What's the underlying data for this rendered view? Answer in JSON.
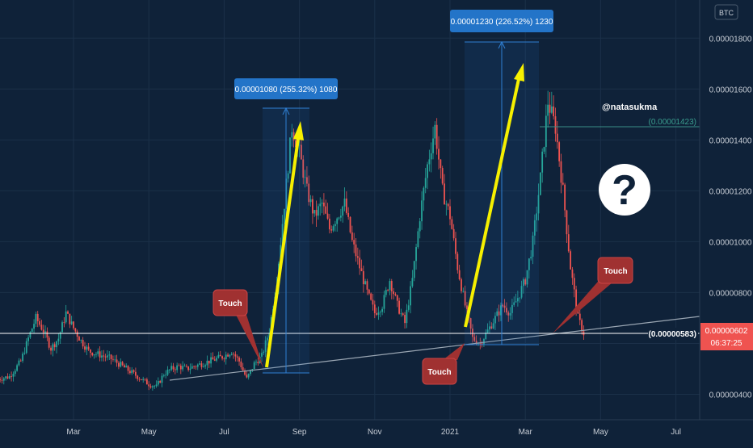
{
  "chart_data": {
    "type": "candlestick",
    "currency": "BTC",
    "watermark": "@natasukma",
    "grid": true,
    "xaxis": {
      "labels": [
        "Mar",
        "May",
        "Jul",
        "Sep",
        "Nov",
        "2021",
        "Mar",
        "May",
        "Jul"
      ]
    },
    "yaxis": {
      "range": [
        3e-06,
        1.95e-05
      ],
      "ticks": [
        "0.00000400",
        "0.00000600",
        "0.00000800",
        "0.00001000",
        "0.00001200",
        "0.00001400",
        "0.00001600",
        "0.00001800"
      ]
    },
    "current_price": "0.00000602",
    "countdown": "06:37:25",
    "horizontal_line_label": "(0.00000583)",
    "level_label": "(0.00001423)",
    "measurements": [
      {
        "label": "0.00001080 (255.32%) 1080",
        "from": 4.25e-06,
        "to": 1.505e-05
      },
      {
        "label": "0.00001230 (226.52%) 1230",
        "from": 5.45e-06,
        "to": 1.775e-05
      }
    ],
    "callouts": [
      "Touch",
      "Touch",
      "Touch"
    ],
    "question_mark": "?",
    "price_series": [
      [
        0.0,
        4.6e-06
      ],
      [
        0.3,
        4.7e-06
      ],
      [
        0.6,
        5.3e-06
      ],
      [
        0.8,
        6.2e-06
      ],
      [
        1.0,
        7e-06
      ],
      [
        1.2,
        6.5e-06
      ],
      [
        1.4,
        5.8e-06
      ],
      [
        1.6,
        6.2e-06
      ],
      [
        1.8,
        7.2e-06
      ],
      [
        2.0,
        6.6e-06
      ],
      [
        2.2,
        6.1e-06
      ],
      [
        2.4,
        5.7e-06
      ],
      [
        2.6,
        5.6e-06
      ],
      [
        2.8,
        5.5e-06
      ],
      [
        3.0,
        5.4e-06
      ],
      [
        3.2,
        5.2e-06
      ],
      [
        3.4,
        5e-06
      ],
      [
        3.6,
        4.8e-06
      ],
      [
        3.8,
        4.6e-06
      ],
      [
        4.0,
        4.4e-06
      ],
      [
        4.2,
        4.3e-06
      ],
      [
        4.4,
        4.8e-06
      ],
      [
        4.6,
        5e-06
      ],
      [
        4.8,
        5.1e-06
      ],
      [
        5.0,
        5e-06
      ],
      [
        5.2,
        5.1e-06
      ],
      [
        5.4,
        5.2e-06
      ],
      [
        5.6,
        5.3e-06
      ],
      [
        5.8,
        5.4e-06
      ],
      [
        6.0,
        5.5e-06
      ],
      [
        6.2,
        5.7e-06
      ],
      [
        6.4,
        5.3e-06
      ],
      [
        6.6,
        4.6e-06
      ],
      [
        6.8,
        5.2e-06
      ],
      [
        7.0,
        5.5e-06
      ],
      [
        7.2,
        6.5e-06
      ],
      [
        7.4,
        8.5e-06
      ],
      [
        7.6,
        1.15e-05
      ],
      [
        7.8,
        1.45e-05
      ],
      [
        8.0,
        1.35e-05
      ],
      [
        8.2,
        1.2e-05
      ],
      [
        8.4,
        1.1e-05
      ],
      [
        8.6,
        1.15e-05
      ],
      [
        8.8,
        1.05e-05
      ],
      [
        9.0,
        1.1e-05
      ],
      [
        9.2,
        1.15e-05
      ],
      [
        9.4,
        1e-05
      ],
      [
        9.6,
        9e-06
      ],
      [
        9.8,
        8e-06
      ],
      [
        10.0,
        7.2e-06
      ],
      [
        10.2,
        7.5e-06
      ],
      [
        10.4,
        8.5e-06
      ],
      [
        10.6,
        7.5e-06
      ],
      [
        10.8,
        6.8e-06
      ],
      [
        11.0,
        8.5e-06
      ],
      [
        11.2,
        1.1e-05
      ],
      [
        11.4,
        1.3e-05
      ],
      [
        11.6,
        1.45e-05
      ],
      [
        11.8,
        1.2e-05
      ],
      [
        12.0,
        1.1e-05
      ],
      [
        12.2,
        9e-06
      ],
      [
        12.4,
        7.5e-06
      ],
      [
        12.6,
        6.2e-06
      ],
      [
        12.8,
        6e-06
      ],
      [
        13.0,
        6.5e-06
      ],
      [
        13.2,
        7e-06
      ],
      [
        13.4,
        7.5e-06
      ],
      [
        13.6,
        7.2e-06
      ],
      [
        13.8,
        7.8e-06
      ],
      [
        14.0,
        8.5e-06
      ],
      [
        14.2,
        1e-05
      ],
      [
        14.4,
        1.25e-05
      ],
      [
        14.6,
        1.55e-05
      ],
      [
        14.8,
        1.45e-05
      ],
      [
        15.0,
        1.2e-05
      ],
      [
        15.2,
        9e-06
      ],
      [
        15.4,
        7e-06
      ],
      [
        15.6,
        6.2e-06
      ]
    ]
  }
}
